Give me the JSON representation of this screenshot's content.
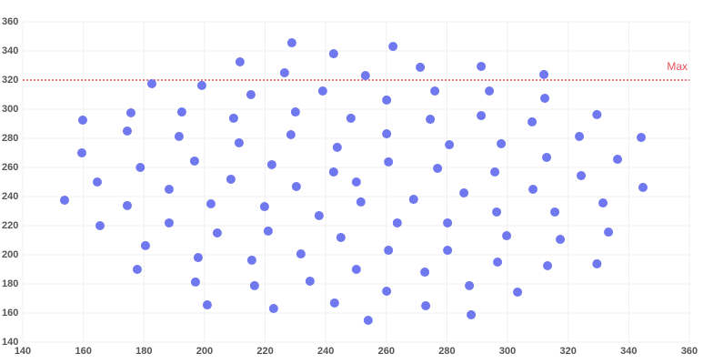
{
  "chart_data": {
    "type": "scatter",
    "color": "#6f78ee",
    "grid": true,
    "xlim": [
      140,
      360
    ],
    "xticks": [
      140,
      160,
      180,
      200,
      220,
      240,
      260,
      280,
      300,
      320,
      340,
      360
    ],
    "ylim": [
      140,
      360
    ],
    "yticks": [
      140,
      160,
      180,
      200,
      220,
      240,
      260,
      280,
      300,
      320,
      340,
      360
    ],
    "reference_line": {
      "value": 320,
      "label": "Max",
      "color": "#e8505b"
    },
    "x": [
      153.8,
      159.8,
      159.5,
      164.6,
      165.5,
      174.5,
      175.7,
      174.5,
      178.8,
      177.8,
      180.5,
      182.6,
      188.3,
      188.3,
      191.6,
      192.5,
      196.7,
      197.9,
      197,
      199.1,
      200.9,
      202.1,
      204.2,
      208.7,
      209.6,
      211.4,
      211.7,
      215.3,
      215.6,
      216.5,
      219.8,
      221,
      222.2,
      222.8,
      226.4,
      228.5,
      228.8,
      230,
      230.3,
      231.8,
      234.8,
      237.8,
      239,
      242.6,
      242.6,
      243.8,
      242.9,
      245,
      248.3,
      250.1,
      250.1,
      251.6,
      253.1,
      254,
      260.1,
      260.1,
      260.7,
      260.7,
      260.1,
      262.2,
      263.6,
      269,
      271.2,
      272.7,
      273,
      274.5,
      276,
      276.9,
      280.8,
      280.2,
      280.2,
      285.6,
      287.4,
      288,
      291.3,
      291.3,
      294,
      295.8,
      296.4,
      296.7,
      297.9,
      299.7,
      303.3,
      308.1,
      308.4,
      312,
      312.3,
      312.9,
      313.2,
      315.6,
      317.4,
      323.7,
      324.3,
      329.5,
      329.5,
      331.5,
      333.3,
      336.3,
      344.1,
      344.7
    ],
    "y": [
      237.5,
      292.5,
      270,
      250,
      220,
      285,
      297.5,
      233.8,
      260,
      190,
      206.3,
      317.5,
      245,
      221.9,
      281.3,
      298.1,
      264.4,
      198.1,
      181.3,
      316.3,
      165.6,
      235,
      215,
      251.9,
      293.8,
      276.9,
      332.5,
      310,
      196.3,
      178.8,
      233.1,
      216.3,
      261.9,
      163.1,
      325,
      282.5,
      345.6,
      298.1,
      246.9,
      200.6,
      181.9,
      226.9,
      312.5,
      256.9,
      338.1,
      273.8,
      166.9,
      211.9,
      293.8,
      250,
      190,
      236.3,
      323.1,
      155,
      306.3,
      283.1,
      263.8,
      203.1,
      175,
      343.1,
      221.9,
      238.1,
      328.8,
      188.1,
      165,
      293.1,
      312.5,
      259.4,
      275.6,
      221.9,
      203.1,
      242.5,
      178.8,
      158.8,
      295.6,
      329.4,
      312.5,
      256.9,
      229.4,
      195,
      276.3,
      213.1,
      174.4,
      291.3,
      245,
      323.8,
      307.5,
      266.9,
      192.5,
      229.4,
      210.6,
      281.3,
      254.4,
      296.3,
      193.8,
      235.6,
      215.6,
      265.6,
      280.6,
      246.3
    ]
  }
}
